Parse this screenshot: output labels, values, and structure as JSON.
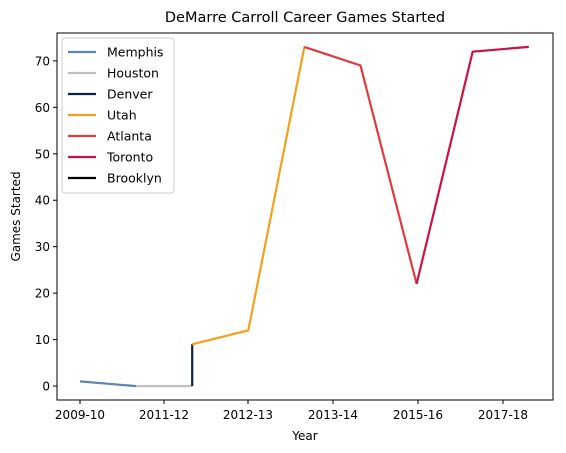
{
  "chart_data": {
    "type": "line",
    "title": "DeMarre Carroll Career Games Started",
    "xlabel": "Year",
    "ylabel": "Games Started",
    "x_tick_labels": [
      "2009-10",
      "2011-12",
      "2012-13",
      "2013-14",
      "2015-16",
      "2017-18"
    ],
    "y_ticks": [
      0,
      10,
      20,
      30,
      40,
      50,
      60,
      70
    ],
    "ylim": [
      -3,
      76
    ],
    "grid": false,
    "legend_placement": "top-left",
    "series": [
      {
        "name": "Memphis",
        "color": "#5b84b1",
        "points": [
          [
            "2009-10",
            1
          ],
          [
            "2010-11",
            0
          ]
        ]
      },
      {
        "name": "Houston",
        "color": "#c0c0c0",
        "points": [
          [
            "2010-11",
            0
          ],
          [
            "2011-12",
            0
          ]
        ]
      },
      {
        "name": "Denver",
        "color": "#0d2240",
        "points": [
          [
            "2011-12",
            0
          ],
          [
            "2011-12",
            9
          ]
        ]
      },
      {
        "name": "Utah",
        "color": "#f5a01a",
        "points": [
          [
            "2011-12",
            9
          ],
          [
            "2012-13",
            12
          ],
          [
            "2013-14",
            73
          ]
        ]
      },
      {
        "name": "Atlanta",
        "color": "#e03a3e",
        "points": [
          [
            "2013-14",
            73
          ],
          [
            "2014-15",
            69
          ],
          [
            "2015-16",
            22
          ]
        ]
      },
      {
        "name": "Toronto",
        "color": "#ce1141",
        "points": [
          [
            "2015-16",
            22
          ],
          [
            "2016-17",
            72
          ],
          [
            "2017-18",
            73
          ]
        ]
      },
      {
        "name": "Brooklyn",
        "color": "#000000",
        "points": []
      }
    ]
  }
}
